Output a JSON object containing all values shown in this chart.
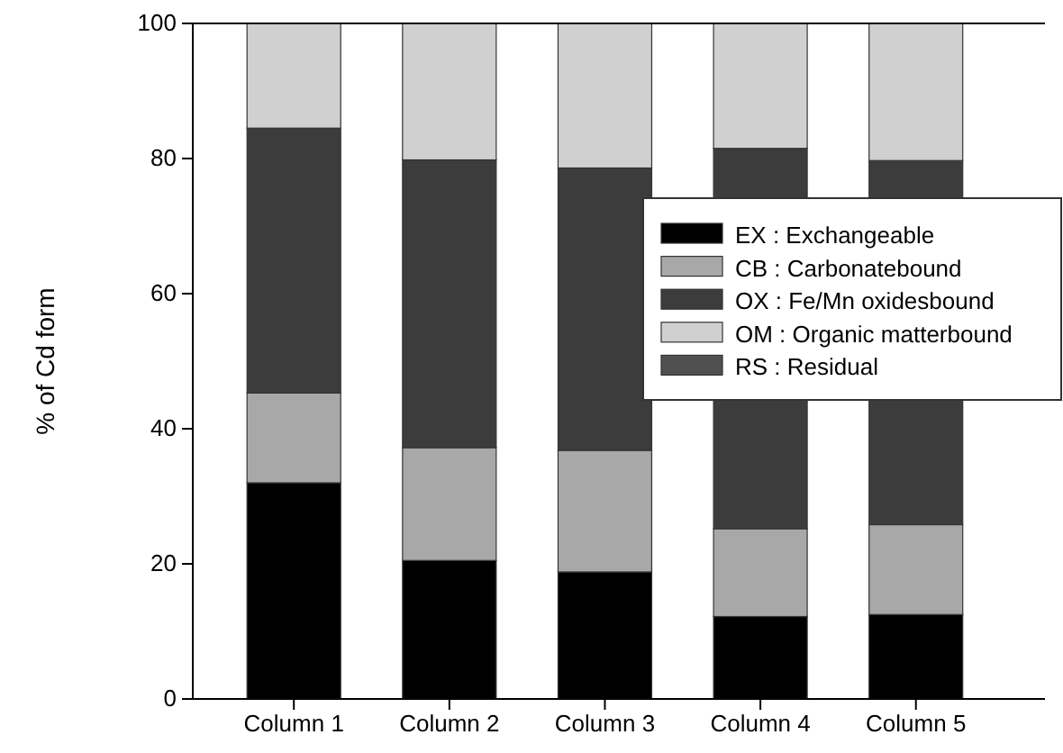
{
  "chart_data": {
    "type": "bar",
    "stacked": true,
    "ylabel": "% of Cd form",
    "categories": [
      "Column 1",
      "Column 2",
      "Column 3",
      "Column 4",
      "Column 5"
    ],
    "series": [
      {
        "name": "EX : Exchangeable",
        "color": "#000000",
        "values": [
          32,
          20.5,
          18.8,
          12.2,
          12.5
        ]
      },
      {
        "name": "CB : Carbonatebound",
        "color": "#a8a8a8",
        "values": [
          13.3,
          16.7,
          18,
          13,
          13.3
        ]
      },
      {
        "name": "OX : Fe/Mn oxidesbound",
        "color": "#3c3c3c",
        "values": [
          39.2,
          42.6,
          41.8,
          56.3,
          53.9
        ]
      },
      {
        "name": "OM : Organic matterbound",
        "color": "#d0d0d0",
        "values": [
          15.5,
          20.2,
          21.4,
          18.5,
          20.3
        ]
      },
      {
        "name": "RS : Residual",
        "color": "#505050",
        "values": [
          0,
          0,
          0,
          0,
          0
        ]
      }
    ],
    "ylim": [
      0,
      100
    ],
    "yticks": [
      0,
      20,
      40,
      60,
      80,
      100
    ],
    "grid": false,
    "legend": "right"
  }
}
